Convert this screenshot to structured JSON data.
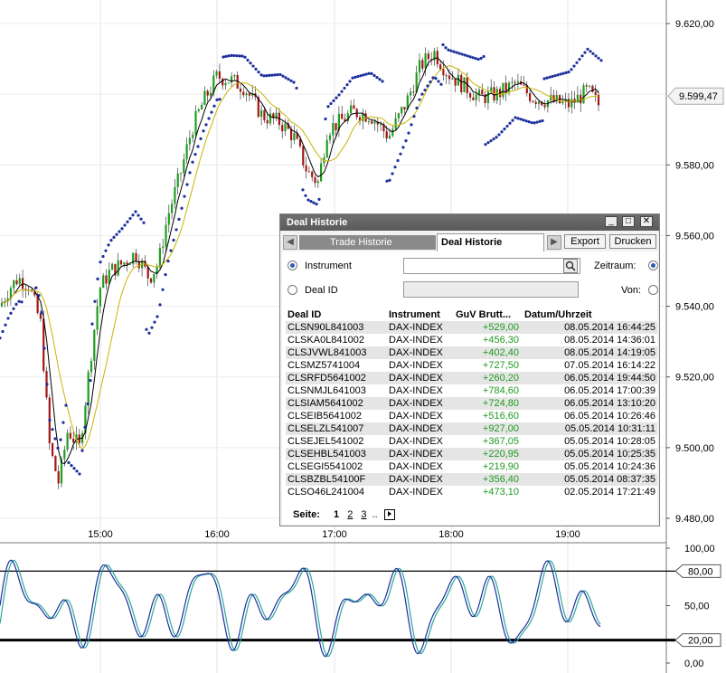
{
  "price_axis": {
    "labels": [
      "9.620,00",
      "9.599,47",
      "9.580,00",
      "9.560,00",
      "9.540,00",
      "9.520,00",
      "9.500,00",
      "9.480,00"
    ],
    "current_price": "9.599,47"
  },
  "time_axis": {
    "labels": [
      "15:00",
      "16:00",
      "17:00",
      "18:00",
      "19:00"
    ]
  },
  "oscillator_axis": {
    "labels": [
      "100,00",
      "80,00",
      "50,00",
      "20,00",
      "0,00"
    ],
    "upper_level": "80,00",
    "lower_level": "20,00"
  },
  "colors": {
    "up_candle": "#1e9e1e",
    "down_candle": "#a51414",
    "sar_dots": "#1c2f9e",
    "ma_black": "#000000",
    "ma_yellow": "#c8b400",
    "window_title_bg": "#5f5f5f",
    "guv_positive": "#1f9a1f"
  },
  "window": {
    "title": "Deal Historie",
    "controls": [
      "minimize-icon",
      "maximize-icon",
      "close-icon"
    ],
    "tabs": [
      {
        "label": "Trade Historie",
        "active": false
      },
      {
        "label": "Deal Historie",
        "active": true
      }
    ],
    "buttons": {
      "export": "Export",
      "print": "Drucken"
    },
    "filter": {
      "instrument_label": "Instrument",
      "deal_id_label": "Deal ID",
      "zeitraum_label": "Zeitraum:",
      "von_label": "Von:",
      "instrument_value": "",
      "deal_id_value": ""
    },
    "table": {
      "headers": [
        "Deal ID",
        "Instrument",
        "GuV Brutt...",
        "Datum/Uhrzeit"
      ],
      "rows": [
        {
          "id": "CLSN90L841003",
          "instrument": "DAX-INDEX",
          "guv": "+529,00",
          "datetime": "08.05.2014 16:44:25"
        },
        {
          "id": "CLSKA0L841002",
          "instrument": "DAX-INDEX",
          "guv": "+456,30",
          "datetime": "08.05.2014 14:36:01"
        },
        {
          "id": "CLSJVWL841003",
          "instrument": "DAX-INDEX",
          "guv": "+402,40",
          "datetime": "08.05.2014 14:19:05"
        },
        {
          "id": "CLSMZ5741004",
          "instrument": "DAX-INDEX",
          "guv": "+727,50",
          "datetime": "07.05.2014 16:14:22"
        },
        {
          "id": "CLSRFD5641002",
          "instrument": "DAX-INDEX",
          "guv": "+260,20",
          "datetime": "06.05.2014 19:44:50"
        },
        {
          "id": "CLSNMJL641003",
          "instrument": "DAX-INDEX",
          "guv": "+784,60",
          "datetime": "06.05.2014 17:00:39"
        },
        {
          "id": "CLSIAM5641002",
          "instrument": "DAX-INDEX",
          "guv": "+724,80",
          "datetime": "06.05.2014 13:10:20"
        },
        {
          "id": "CLSEIB5641002",
          "instrument": "DAX-INDEX",
          "guv": "+516,60",
          "datetime": "06.05.2014 10:26:46"
        },
        {
          "id": "CLSELZL541007",
          "instrument": "DAX-INDEX",
          "guv": "+927,00",
          "datetime": "05.05.2014 10:31:11"
        },
        {
          "id": "CLSEJEL541002",
          "instrument": "DAX-INDEX",
          "guv": "+367,05",
          "datetime": "05.05.2014 10:28:05"
        },
        {
          "id": "CLSEHBL541003",
          "instrument": "DAX-INDEX",
          "guv": "+220,95",
          "datetime": "05.05.2014 10:25:35"
        },
        {
          "id": "CLSEGI5541002",
          "instrument": "DAX-INDEX",
          "guv": "+219,90",
          "datetime": "05.05.2014 10:24:36"
        },
        {
          "id": "CLSBZBL54100F",
          "instrument": "DAX-INDEX",
          "guv": "+356,40",
          "datetime": "05.05.2014 08:37:35"
        },
        {
          "id": "CLSO46L241004",
          "instrument": "DAX-INDEX",
          "guv": "+473,10",
          "datetime": "02.05.2014 17:21:49"
        }
      ]
    },
    "pager": {
      "label": "Seite:",
      "pages": [
        "1",
        "2",
        "3"
      ],
      "ellipsis": ".."
    }
  }
}
